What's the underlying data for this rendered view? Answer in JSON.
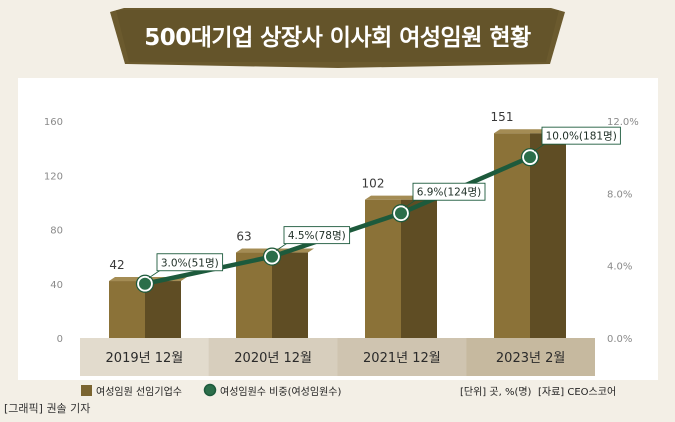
{
  "title": "500대기업 상장사 이사회 여성임원 현황",
  "credit": "[그래픽] 권솔 기자",
  "unit_note": "[단위] 곳, %(명)",
  "source_note": "[자료] CEO스코어",
  "colors": {
    "bar_front": "#8b7238",
    "bar_side": "#5f4d24",
    "bar_top": "#a48c54",
    "line": "#1d5a3c",
    "marker": "#2b6e4a",
    "banner": "#6b5a2e",
    "plot_bg": "#ffffff"
  },
  "chart_data": {
    "type": "bar",
    "categories": [
      "2019년 12월",
      "2020년 12월",
      "2021년 12월",
      "2023년 2월"
    ],
    "series": [
      {
        "name": "여성임원 선임기업수",
        "values": [
          42,
          63,
          102,
          151
        ],
        "value_labels": [
          "42",
          "63",
          "102",
          "151"
        ]
      },
      {
        "name": "여성임원수 비중(여성임원수)",
        "type": "line",
        "values": [
          3.0,
          4.5,
          6.9,
          10.0
        ],
        "counts": [
          51,
          78,
          124,
          181
        ],
        "value_labels": [
          "3.0%(51명)",
          "4.5%(78명)",
          "6.9%(124명)",
          "10.0%(181명)"
        ]
      }
    ],
    "y_left": {
      "range": [
        0,
        160
      ],
      "ticks": [
        "0",
        "40",
        "80",
        "120",
        "160"
      ]
    },
    "y_right": {
      "range": [
        0,
        12
      ],
      "ticks": [
        "0.0%",
        "4.0%",
        "8.0%",
        "12.0%"
      ]
    },
    "grid": false,
    "legend": "bottom-left"
  }
}
